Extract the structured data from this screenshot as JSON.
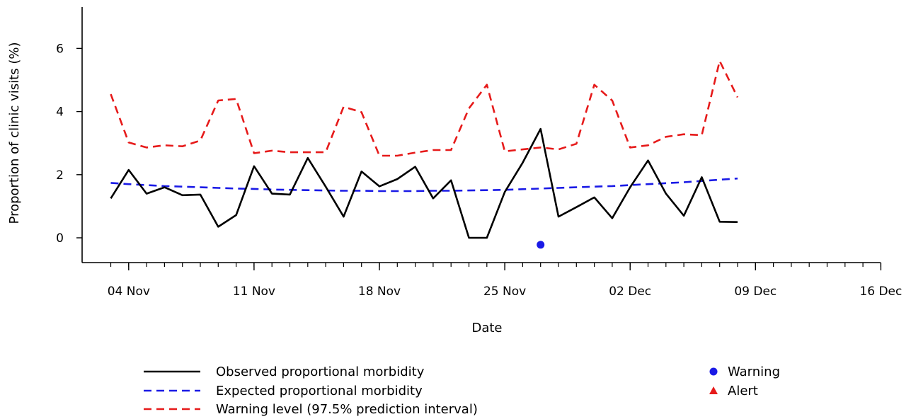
{
  "chart_data": {
    "type": "line",
    "title": "",
    "xlabel": "Date",
    "ylabel": "Proportion of clinic visits (%)",
    "x_range": [
      "2024-11-03",
      "2024-12-16"
    ],
    "ylim": [
      -0.7,
      7.3
    ],
    "y_ticks": [
      0,
      2,
      4,
      6
    ],
    "x_major_ticks": [
      {
        "date": "2024-11-04",
        "label": "04 Nov"
      },
      {
        "date": "2024-11-11",
        "label": "11 Nov"
      },
      {
        "date": "2024-11-18",
        "label": "18 Nov"
      },
      {
        "date": "2024-11-25",
        "label": "25 Nov"
      },
      {
        "date": "2024-12-02",
        "label": "02 Dec"
      },
      {
        "date": "2024-12-09",
        "label": "09 Dec"
      },
      {
        "date": "2024-12-16",
        "label": "16 Dec"
      }
    ],
    "x_minor_ticks": "daily",
    "grid": false,
    "legend_position": "bottom",
    "dates": [
      "2024-11-03",
      "2024-11-04",
      "2024-11-05",
      "2024-11-06",
      "2024-11-07",
      "2024-11-08",
      "2024-11-09",
      "2024-11-10",
      "2024-11-11",
      "2024-11-12",
      "2024-11-13",
      "2024-11-14",
      "2024-11-15",
      "2024-11-16",
      "2024-11-17",
      "2024-11-18",
      "2024-11-19",
      "2024-11-20",
      "2024-11-21",
      "2024-11-22",
      "2024-11-23",
      "2024-11-24",
      "2024-11-25",
      "2024-11-26",
      "2024-11-27",
      "2024-11-28",
      "2024-11-29",
      "2024-11-30",
      "2024-12-01",
      "2024-12-02",
      "2024-12-03",
      "2024-12-04",
      "2024-12-05",
      "2024-12-06",
      "2024-12-07",
      "2024-12-08"
    ],
    "series": [
      {
        "name": "Observed proportional morbidity",
        "color": "#000000",
        "style": "solid",
        "values": [
          1.25,
          2.15,
          1.4,
          1.6,
          1.35,
          1.37,
          0.35,
          0.72,
          2.27,
          1.4,
          1.37,
          2.53,
          1.62,
          0.67,
          2.1,
          1.63,
          1.86,
          2.25,
          1.25,
          1.82,
          0.0,
          0.0,
          1.45,
          2.38,
          3.45,
          0.67,
          0.97,
          1.28,
          0.62,
          1.6,
          2.45,
          1.4,
          0.7,
          1.92,
          0.51,
          0.5
        ]
      },
      {
        "name": "Expected proportional morbidity",
        "color": "#1a1ae6",
        "style": "dashed",
        "values": [
          1.74,
          1.7,
          1.67,
          1.64,
          1.62,
          1.6,
          1.58,
          1.56,
          1.55,
          1.53,
          1.52,
          1.51,
          1.5,
          1.49,
          1.49,
          1.48,
          1.48,
          1.48,
          1.49,
          1.49,
          1.5,
          1.51,
          1.52,
          1.54,
          1.56,
          1.58,
          1.6,
          1.62,
          1.64,
          1.67,
          1.7,
          1.73,
          1.76,
          1.8,
          1.84,
          1.88
        ]
      },
      {
        "name": "Warning level (97.5% prediction interval)",
        "color": "#e61a1a",
        "style": "dashed",
        "values": [
          4.55,
          3.02,
          2.86,
          2.93,
          2.9,
          3.08,
          4.35,
          4.4,
          2.68,
          2.76,
          2.71,
          2.71,
          2.71,
          4.15,
          3.98,
          2.6,
          2.6,
          2.7,
          2.78,
          2.78,
          4.1,
          4.85,
          2.74,
          2.8,
          2.86,
          2.8,
          2.98,
          4.85,
          4.35,
          2.86,
          2.93,
          3.2,
          3.28,
          3.25,
          5.6,
          4.45
        ]
      }
    ],
    "markers": [
      {
        "name": "Warning",
        "shape": "circle",
        "color": "#1a1ae6",
        "points": [
          {
            "date": "2024-11-27",
            "value": -0.22
          }
        ]
      },
      {
        "name": "Alert",
        "shape": "triangle",
        "color": "#e61a1a",
        "points": []
      }
    ]
  }
}
